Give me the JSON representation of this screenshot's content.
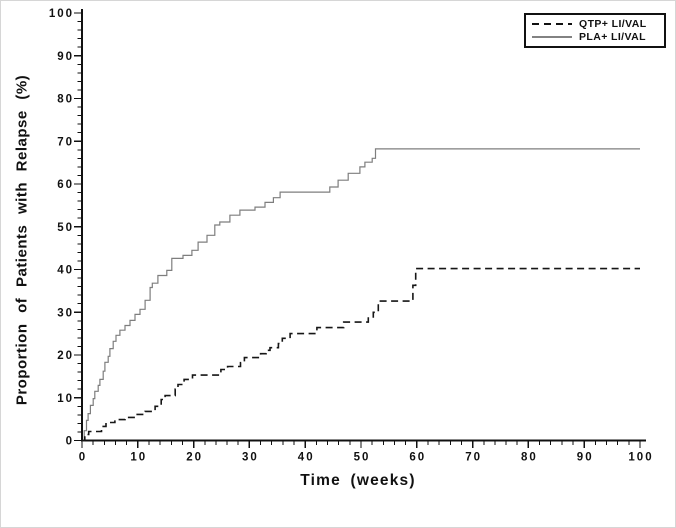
{
  "chart_data": {
    "type": "line",
    "variant": "kaplan-meier-step",
    "title": "",
    "xlabel": "Time (weeks)",
    "ylabel": "Proportion of Patients with Relapse (%)",
    "xlim": [
      0,
      100
    ],
    "ylim": [
      0,
      100
    ],
    "x_major_ticks": [
      0,
      10,
      20,
      30,
      40,
      50,
      60,
      70,
      80,
      90,
      100
    ],
    "y_major_ticks": [
      0,
      10,
      20,
      30,
      40,
      50,
      60,
      70,
      80,
      90,
      100
    ],
    "minor_tick_interval": 2,
    "grid": false,
    "axis_color": "#111111",
    "legend": {
      "position": "top-right",
      "entries": [
        {
          "label": "QTP+ LI/VAL",
          "style": "dashed",
          "color": "#111111"
        },
        {
          "label": "PLA+ LI/VAL",
          "style": "solid",
          "color": "#828282"
        }
      ]
    },
    "series": [
      {
        "name": "PLA+ LI/VAL",
        "style": "solid",
        "color": "#7e7e7e",
        "width": 1.2,
        "points": [
          [
            0,
            0
          ],
          [
            0.4,
            2.3
          ],
          [
            0.8,
            4.7
          ],
          [
            1.1,
            6.3
          ],
          [
            1.5,
            8.2
          ],
          [
            2,
            9.8
          ],
          [
            2.3,
            11.5
          ],
          [
            2.9,
            12.9
          ],
          [
            3.2,
            14.3
          ],
          [
            3.8,
            16.2
          ],
          [
            4.1,
            18.3
          ],
          [
            4.7,
            19.7
          ],
          [
            5,
            21.5
          ],
          [
            5.6,
            23.2
          ],
          [
            6.1,
            24.6
          ],
          [
            6.8,
            25.8
          ],
          [
            7.7,
            26.9
          ],
          [
            8.6,
            28.1
          ],
          [
            9.5,
            29.5
          ],
          [
            10.4,
            30.7
          ],
          [
            11.3,
            32.8
          ],
          [
            12.2,
            35.8
          ],
          [
            12.6,
            36.8
          ],
          [
            13.6,
            38.6
          ],
          [
            15.2,
            39.8
          ],
          [
            16.1,
            42.6
          ],
          [
            18.1,
            43.3
          ],
          [
            19.7,
            44.5
          ],
          [
            20.8,
            46.4
          ],
          [
            22.4,
            48
          ],
          [
            23.8,
            50.4
          ],
          [
            24.7,
            51.1
          ],
          [
            26.5,
            52.7
          ],
          [
            28.3,
            53.9
          ],
          [
            31,
            54.6
          ],
          [
            32.8,
            55.7
          ],
          [
            34.3,
            56.8
          ],
          [
            35.5,
            58.1
          ],
          [
            44.4,
            59.3
          ],
          [
            45.9,
            60.9
          ],
          [
            47.7,
            62.5
          ],
          [
            49.8,
            64
          ],
          [
            50.7,
            65.1
          ],
          [
            52,
            66
          ],
          [
            52.6,
            68.2
          ],
          [
            100,
            68.2
          ]
        ]
      },
      {
        "name": "QTP+ LI/VAL",
        "style": "dashed",
        "color": "#161616",
        "width": 1.6,
        "dash": [
          7,
          4.5
        ],
        "points": [
          [
            0,
            0
          ],
          [
            0.5,
            1.4
          ],
          [
            1.2,
            2.1
          ],
          [
            3.5,
            3.3
          ],
          [
            4.3,
            4.2
          ],
          [
            5.9,
            4.9
          ],
          [
            7.7,
            5.4
          ],
          [
            9.5,
            6.1
          ],
          [
            11.3,
            6.8
          ],
          [
            13.1,
            8
          ],
          [
            14.2,
            9.6
          ],
          [
            14.9,
            10.5
          ],
          [
            16.7,
            12
          ],
          [
            17.2,
            13.1
          ],
          [
            18.3,
            14.3
          ],
          [
            19.8,
            15.3
          ],
          [
            24.9,
            16.6
          ],
          [
            26.1,
            17.3
          ],
          [
            28.4,
            18.2
          ],
          [
            29.1,
            19.4
          ],
          [
            32,
            20.3
          ],
          [
            33,
            21.1
          ],
          [
            33.7,
            21.7
          ],
          [
            35.2,
            22.7
          ],
          [
            35.9,
            23.9
          ],
          [
            37.3,
            25
          ],
          [
            42.1,
            26.4
          ],
          [
            46.9,
            27.7
          ],
          [
            51.3,
            28.9
          ],
          [
            52.2,
            30
          ],
          [
            53.1,
            32.6
          ],
          [
            59.3,
            36.3
          ],
          [
            59.8,
            40.2
          ],
          [
            100,
            40.2
          ]
        ]
      }
    ]
  }
}
